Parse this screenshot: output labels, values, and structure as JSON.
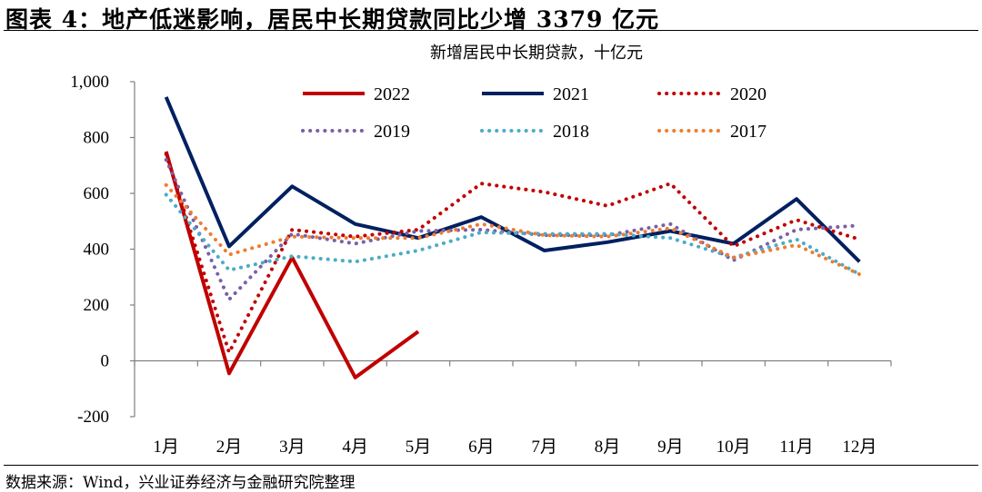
{
  "figure": {
    "title": "图表 4：地产低迷影响，居民中长期贷款同比少增 3379 亿元",
    "source": "数据来源：Wind，兴业证券经济与金融研究院整理"
  },
  "chart_data": {
    "type": "line",
    "title": "新增居民中长期贷款，十亿元",
    "xlabel": "",
    "ylabel": "",
    "categories": [
      "1月",
      "2月",
      "3月",
      "4月",
      "5月",
      "6月",
      "7月",
      "8月",
      "9月",
      "10月",
      "11月",
      "12月"
    ],
    "ylim": [
      -200,
      1000
    ],
    "yticks": [
      -200,
      0,
      200,
      400,
      600,
      800,
      1000
    ],
    "ytick_labels": [
      "-200",
      "0",
      "200",
      "400",
      "600",
      "800",
      "1,000"
    ],
    "grid": false,
    "legend_position": "top",
    "series": [
      {
        "name": "2022",
        "color": "#C00000",
        "style": "solid",
        "values": [
          750,
          -45,
          370,
          -60,
          105,
          null,
          null,
          null,
          null,
          null,
          null,
          null
        ]
      },
      {
        "name": "2021",
        "color": "#002060",
        "style": "solid",
        "values": [
          945,
          410,
          625,
          490,
          440,
          515,
          395,
          425,
          465,
          420,
          580,
          355
        ]
      },
      {
        "name": "2020",
        "color": "#C00000",
        "style": "dotted",
        "values": [
          740,
          30,
          470,
          445,
          470,
          635,
          605,
          555,
          635,
          410,
          505,
          435
        ]
      },
      {
        "name": "2019",
        "color": "#7B5FA6",
        "style": "dotted",
        "values": [
          720,
          220,
          455,
          420,
          465,
          470,
          450,
          450,
          490,
          360,
          470,
          485
        ]
      },
      {
        "name": "2018",
        "color": "#4BACC6",
        "style": "dotted",
        "values": [
          595,
          325,
          375,
          355,
          395,
          460,
          455,
          455,
          440,
          370,
          435,
          310
        ]
      },
      {
        "name": "2017",
        "color": "#ED7D31",
        "style": "dotted",
        "values": [
          630,
          380,
          445,
          440,
          440,
          490,
          450,
          445,
          475,
          370,
          415,
          310
        ]
      }
    ]
  }
}
